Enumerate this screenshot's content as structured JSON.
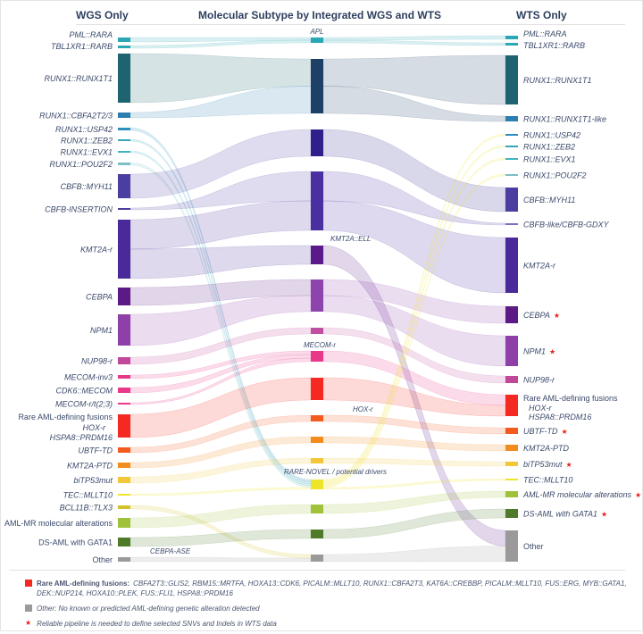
{
  "headers": {
    "left": "WGS Only",
    "middle": "Molecular Subtype by Integrated WGS and WTS",
    "right": "WTS Only"
  },
  "left_nodes": [
    {
      "label": "PML::RARA",
      "color": "#2aa7b5",
      "italic": true
    },
    {
      "label": "TBL1XR1::RARB",
      "color": "#2aa7b5",
      "italic": true
    },
    {
      "label": "RUNX1::RUNX1T1",
      "color": "#1e6470",
      "italic": true
    },
    {
      "label": "RUNX1::CBFA2T2/3",
      "color": "#2b7fb0",
      "italic": true
    },
    {
      "label": "RUNX1::USP42",
      "color": "#2f8fc0",
      "italic": true
    },
    {
      "label": "RUNX1::ZEB2",
      "color": "#35a6b8",
      "italic": true
    },
    {
      "label": "RUNX1::EVX1",
      "color": "#41b3c2",
      "italic": true
    },
    {
      "label": "RUNX1::POU2F2",
      "color": "#7cc0c8",
      "italic": true
    },
    {
      "label": "CBFB::MYH11",
      "color": "#4a3fa0",
      "italic": true
    },
    {
      "label": "CBFB-INSERTION",
      "color": "#4a3fa0",
      "italic": true
    },
    {
      "label": "KMT2A-r",
      "color": "#4a2a9a",
      "italic": true
    },
    {
      "label": "CEBPA",
      "color": "#5b1a86",
      "italic": true
    },
    {
      "label": "NPM1",
      "color": "#8e3fa8",
      "italic": true
    },
    {
      "label": "NUP98-r",
      "color": "#c0479a",
      "italic": true
    },
    {
      "label": "MECOM-inv3",
      "color": "#e8388a",
      "italic": true
    },
    {
      "label": "CDK6::MECOM",
      "color": "#e8388a",
      "italic": true
    },
    {
      "label": "MECOM-r/t(2;3)",
      "color": "#e8388a",
      "italic": true
    },
    {
      "label": "Rare AML-defining fusions",
      "color": "#f42a22",
      "italic": false
    },
    {
      "label": "UBTF-TD",
      "color": "#f25a1e",
      "italic": true
    },
    {
      "label": "KMT2A-PTD",
      "color": "#f28c1e",
      "italic": true
    },
    {
      "label": "biTP53mut",
      "color": "#f2c73a",
      "italic": true
    },
    {
      "label": "TEC::MLLT10",
      "color": "#eee42a",
      "italic": true
    },
    {
      "label": "BCL11B::TLX3",
      "color": "#d4c22a",
      "italic": true
    },
    {
      "label": "AML-MR molecular alterations",
      "color": "#9fc23a",
      "italic": false
    },
    {
      "label": "DS-AML with GATA1",
      "color": "#4f7a2a",
      "italic": false
    },
    {
      "label": "Other",
      "color": "#9a9a9a",
      "italic": false
    }
  ],
  "left_sub_labels": [
    "HOX-r",
    "HSPA8::PRDM16"
  ],
  "middle_nodes": [
    {
      "label": "APL",
      "color": "#2aa7b5"
    },
    {
      "label": "",
      "color": "#1e3f66"
    },
    {
      "label": "",
      "color": "#2e1f8a"
    },
    {
      "label": "",
      "color": "#4a2fa0"
    },
    {
      "label": "KMT2A::ELL",
      "color": "#5b1a8a"
    },
    {
      "label": "",
      "color": "#8e44ad"
    },
    {
      "label": "",
      "color": "#c04fa0"
    },
    {
      "label": "MECOM-r",
      "color": "#e8388a"
    },
    {
      "label": "",
      "color": "#f42a22"
    },
    {
      "label": "HOX-r",
      "color": "#f25a1e"
    },
    {
      "label": "",
      "color": "#f28c1e"
    },
    {
      "label": "",
      "color": "#f2c73a"
    },
    {
      "label": "RARE-NOVEL / potential drivers",
      "color": "#eee42a"
    },
    {
      "label": "",
      "color": "#9fc23a"
    },
    {
      "label": "",
      "color": "#4f7a2a"
    },
    {
      "label": "CEBPA-ASE",
      "color": "#9a9a9a"
    }
  ],
  "right_nodes": [
    {
      "label": "PML::RARA",
      "color": "#2aa7b5",
      "italic": true,
      "star": false
    },
    {
      "label": "TBL1XR1::RARB",
      "color": "#2aa7b5",
      "italic": true,
      "star": false
    },
    {
      "label": "RUNX1::RUNX1T1",
      "color": "#1e6470",
      "italic": true,
      "star": false
    },
    {
      "label": "RUNX1::RUNX1T1-like",
      "color": "#2b7fb0",
      "italic": true,
      "star": false
    },
    {
      "label": "RUNX1::USP42",
      "color": "#2f8fc0",
      "italic": true,
      "star": false
    },
    {
      "label": "RUNX1::ZEB2",
      "color": "#35a6b8",
      "italic": true,
      "star": false
    },
    {
      "label": "RUNX1::EVX1",
      "color": "#41b3c2",
      "italic": true,
      "star": false
    },
    {
      "label": "RUNX1::POU2F2",
      "color": "#7cc0c8",
      "italic": true,
      "star": false
    },
    {
      "label": "CBFB::MYH11",
      "color": "#4a3fa0",
      "italic": true,
      "star": false
    },
    {
      "label": "CBFB-like/CBFB-GDXY",
      "color": "#7a70c0",
      "italic": true,
      "star": false
    },
    {
      "label": "KMT2A-r",
      "color": "#4a2a9a",
      "italic": true,
      "star": false
    },
    {
      "label": "CEBPA",
      "color": "#5b1a86",
      "italic": true,
      "star": true
    },
    {
      "label": "NPM1",
      "color": "#8e3fa8",
      "italic": true,
      "star": true
    },
    {
      "label": "NUP98-r",
      "color": "#c0479a",
      "italic": true,
      "star": false
    },
    {
      "label": "Rare AML-defining fusions",
      "color": "#f42a22",
      "italic": false,
      "star": false
    },
    {
      "label": "UBTF-TD",
      "color": "#f25a1e",
      "italic": true,
      "star": true
    },
    {
      "label": "KMT2A-PTD",
      "color": "#f28c1e",
      "italic": true,
      "star": false
    },
    {
      "label": "biTP53mut",
      "color": "#f2c73a",
      "italic": true,
      "star": true
    },
    {
      "label": "TEC::MLLT10",
      "color": "#eee42a",
      "italic": true,
      "star": false
    },
    {
      "label": "AML-MR molecular alterations",
      "color": "#9fc23a",
      "italic": true,
      "star": true
    },
    {
      "label": "DS-AML with GATA1",
      "color": "#4f7a2a",
      "italic": true,
      "star": true
    },
    {
      "label": "Other",
      "color": "#9a9a9a",
      "italic": false,
      "star": false
    }
  ],
  "right_sub_labels": [
    "HOX-r",
    "HSPA8::PRDM16"
  ],
  "star_symbol": "★",
  "links_left": [
    [
      0,
      0
    ],
    [
      1,
      0
    ],
    [
      2,
      1
    ],
    [
      3,
      1
    ],
    [
      4,
      12
    ],
    [
      5,
      12
    ],
    [
      6,
      12
    ],
    [
      7,
      12
    ],
    [
      8,
      2
    ],
    [
      9,
      3
    ],
    [
      10,
      3
    ],
    [
      10,
      4
    ],
    [
      11,
      5
    ],
    [
      12,
      5
    ],
    [
      13,
      6
    ],
    [
      14,
      7
    ],
    [
      15,
      7
    ],
    [
      16,
      7
    ],
    [
      17,
      8
    ],
    [
      18,
      9
    ],
    [
      19,
      10
    ],
    [
      20,
      11
    ],
    [
      21,
      12
    ],
    [
      22,
      15
    ],
    [
      23,
      13
    ],
    [
      24,
      14
    ],
    [
      25,
      15
    ]
  ],
  "links_right": [
    [
      0,
      0
    ],
    [
      0,
      1
    ],
    [
      1,
      2
    ],
    [
      1,
      3
    ],
    [
      2,
      8
    ],
    [
      3,
      9
    ],
    [
      3,
      10
    ],
    [
      4,
      21
    ],
    [
      5,
      11
    ],
    [
      5,
      12
    ],
    [
      6,
      13
    ],
    [
      7,
      14
    ],
    [
      8,
      14
    ],
    [
      9,
      15
    ],
    [
      10,
      16
    ],
    [
      11,
      17
    ],
    [
      12,
      4
    ],
    [
      12,
      5
    ],
    [
      12,
      6
    ],
    [
      12,
      7
    ],
    [
      12,
      18
    ],
    [
      13,
      19
    ],
    [
      14,
      20
    ],
    [
      15,
      21
    ]
  ],
  "legend": {
    "rare_title": "Rare AML-defining fusions:",
    "rare_text": "CBFA2T3::GLIS2, RBM15::MRTFA, HOXA13::CDK6, PICALM::MLLT10, RUNX1::CBFA2T3, KAT6A::CREBBP, PICALM::MLLT10, FUS::ERG, MYB::GATA1, DEK::NUP214, HOXA10::PLEK, FUS::FLI1, HSPA8::PRDM16",
    "rare_color": "#f42a22",
    "other_text": "Other: No known or predicted AML-defining genetic alteration detected",
    "other_color": "#9a9a9a",
    "star_text": "Reliable pipeline is needed to define selected SNVs and Indels in WTS data"
  }
}
